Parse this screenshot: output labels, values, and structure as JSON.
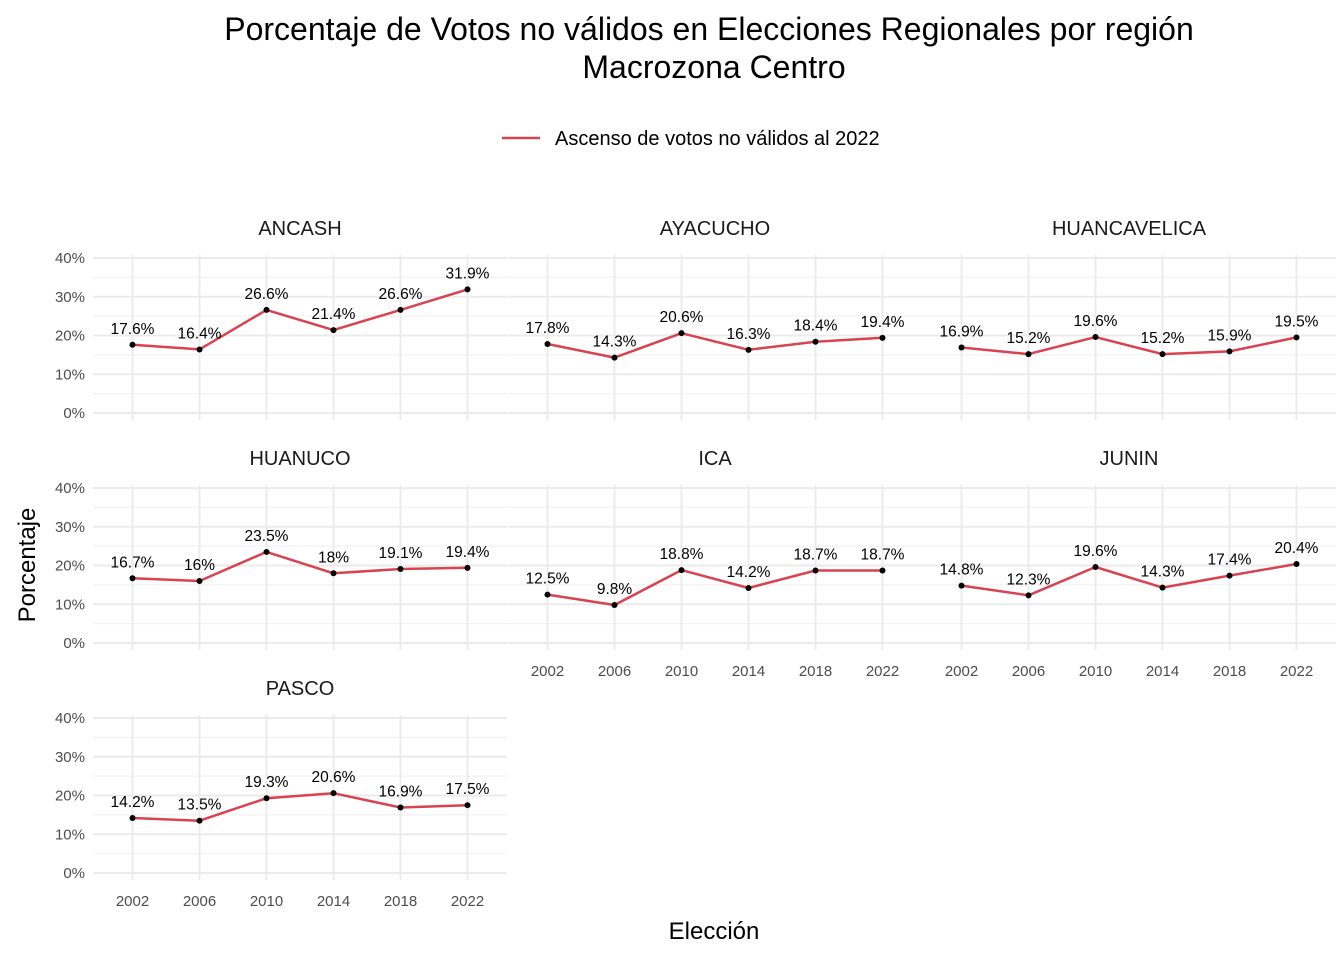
{
  "chart_data": {
    "type": "line",
    "title": "Porcentaje de Votos no válidos en Elecciones Regionales por región",
    "subtitle": "Macrozona Centro",
    "xlabel": "Elección",
    "ylabel": "Porcentaje",
    "x": [
      2002,
      2006,
      2010,
      2014,
      2018,
      2022
    ],
    "x_ticks": [
      "2002",
      "2006",
      "2010",
      "2014",
      "2018",
      "2022"
    ],
    "ylim": [
      0,
      40
    ],
    "y_ticks": [
      "0%",
      "10%",
      "20%",
      "30%",
      "40%"
    ],
    "grid": true,
    "legend": {
      "position": "top",
      "label": "Ascenso de votos no válidos al 2022"
    },
    "colors": {
      "line": "#d9434f",
      "point": "#000000",
      "grid": "#ebebeb"
    },
    "facets": [
      {
        "name": "ANCASH",
        "values": [
          17.6,
          16.4,
          26.6,
          21.4,
          26.6,
          31.9
        ],
        "labels": [
          "17.6%",
          "16.4%",
          "26.6%",
          "21.4%",
          "26.6%",
          "31.9%"
        ]
      },
      {
        "name": "AYACUCHO",
        "values": [
          17.8,
          14.3,
          20.6,
          16.3,
          18.4,
          19.4
        ],
        "labels": [
          "17.8%",
          "14.3%",
          "20.6%",
          "16.3%",
          "18.4%",
          "19.4%"
        ]
      },
      {
        "name": "HUANCAVELICA",
        "values": [
          16.9,
          15.2,
          19.6,
          15.2,
          15.9,
          19.5
        ],
        "labels": [
          "16.9%",
          "15.2%",
          "19.6%",
          "15.2%",
          "15.9%",
          "19.5%"
        ]
      },
      {
        "name": "HUANUCO",
        "values": [
          16.7,
          16.0,
          23.5,
          18.0,
          19.1,
          19.4
        ],
        "labels": [
          "16.7%",
          "16%",
          "23.5%",
          "18%",
          "19.1%",
          "19.4%"
        ]
      },
      {
        "name": "ICA",
        "values": [
          12.5,
          9.8,
          18.8,
          14.2,
          18.7,
          18.7
        ],
        "labels": [
          "12.5%",
          "9.8%",
          "18.8%",
          "14.2%",
          "18.7%",
          "18.7%"
        ]
      },
      {
        "name": "JUNIN",
        "values": [
          14.8,
          12.3,
          19.6,
          14.3,
          17.4,
          20.4
        ],
        "labels": [
          "14.8%",
          "12.3%",
          "19.6%",
          "14.3%",
          "17.4%",
          "20.4%"
        ]
      },
      {
        "name": "PASCO",
        "values": [
          14.2,
          13.5,
          19.3,
          20.6,
          16.9,
          17.5
        ],
        "labels": [
          "14.2%",
          "13.5%",
          "19.3%",
          "20.6%",
          "16.9%",
          "17.5%"
        ]
      }
    ]
  }
}
